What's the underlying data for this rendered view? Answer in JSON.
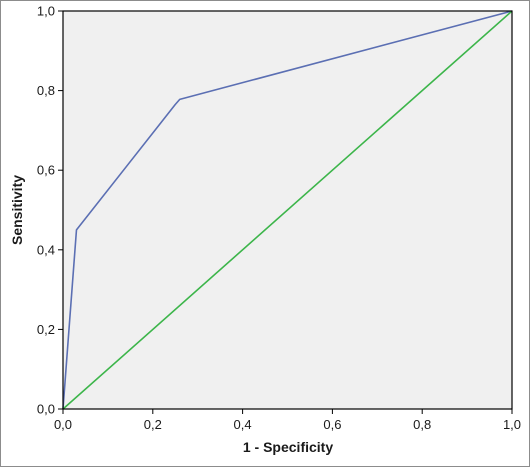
{
  "chart_data": {
    "type": "line",
    "title": "",
    "xlabel": "1 - Specificity",
    "ylabel": "Sensitivity",
    "xlim": [
      0,
      1
    ],
    "ylim": [
      0,
      1
    ],
    "x_ticks": [
      "0,0",
      "0,2",
      "0,4",
      "0,6",
      "0,8",
      "1,0"
    ],
    "y_ticks": [
      "0,0",
      "0,2",
      "0,4",
      "0,6",
      "0,8",
      "1,0"
    ],
    "grid": false,
    "background_color": "#f0f0f0",
    "series": [
      {
        "color": "#5b6fb3",
        "x": [
          0,
          0.03,
          0.25,
          0.26,
          1.0
        ],
        "y": [
          0,
          0.45,
          0.765,
          0.778,
          1.0
        ]
      },
      {
        "color": "#3cb54a",
        "x": [
          0,
          1.0
        ],
        "y": [
          0,
          1.0
        ]
      }
    ]
  }
}
